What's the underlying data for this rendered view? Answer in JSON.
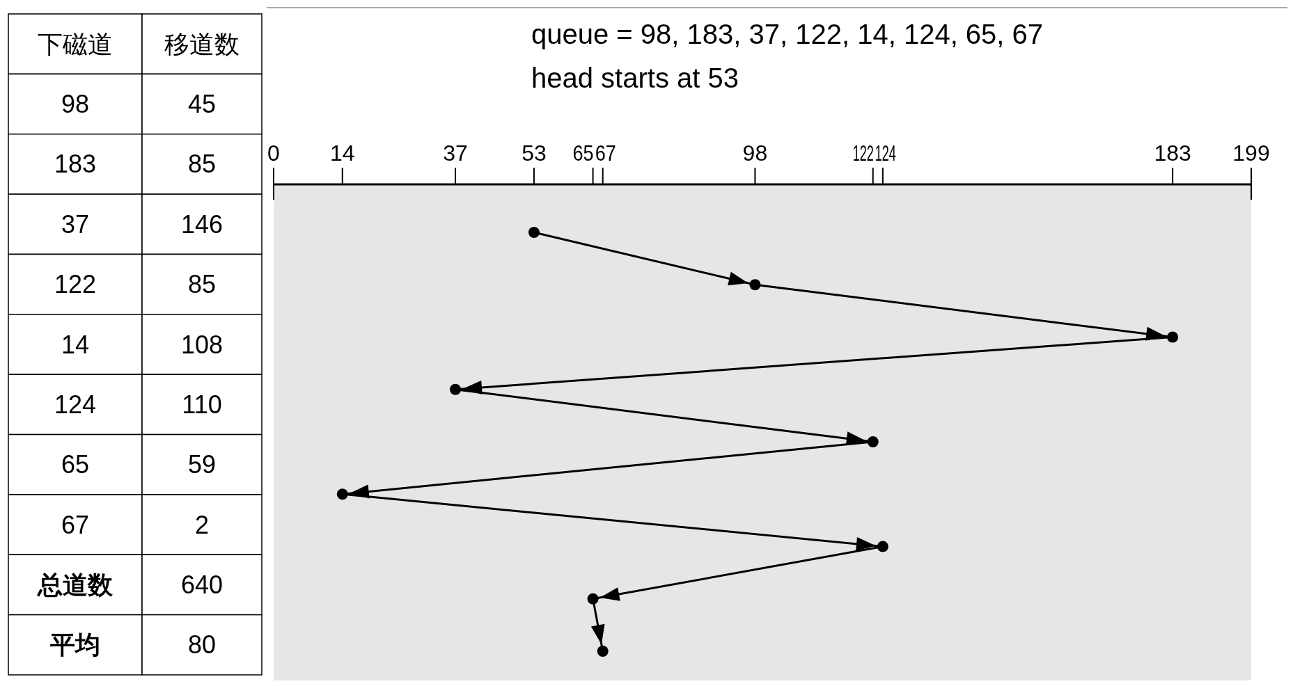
{
  "chart_data": [
    {
      "type": "other",
      "annotations": [
        "下磁道",
        "移道数",
        "98",
        "45",
        "183",
        "85",
        "37",
        "146",
        "122",
        "85",
        "14",
        "108",
        "124",
        "110",
        "65",
        "59",
        "67",
        "2",
        "总道数",
        "640",
        "平均",
        "80"
      ]
    },
    {
      "type": "line",
      "orientation": "horizontal",
      "title": "queue = 98, 183, 37, 122, 14, 124, 65, 67",
      "subtitle": "head starts at 53",
      "categories": [
        null,
        null,
        null,
        null,
        null,
        null,
        null,
        null,
        null
      ],
      "values": [
        53,
        98,
        183,
        37,
        122,
        14,
        124,
        65,
        67
      ],
      "color": "#000000",
      "xlim": [
        0,
        199
      ],
      "xticks": [
        0,
        14,
        37,
        53,
        65,
        67,
        98,
        122,
        124,
        183,
        199
      ],
      "marker": "circle"
    }
  ]
}
